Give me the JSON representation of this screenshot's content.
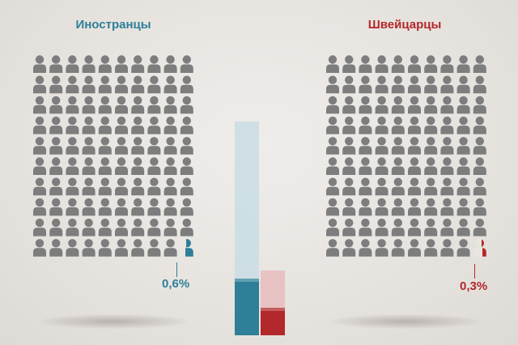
{
  "groups": {
    "foreigners": {
      "label": "Иностранцы",
      "percent_label": "0,6%",
      "color": "#2e7f97"
    },
    "swiss": {
      "label": "Швейцарцы",
      "percent_label": "0,3%",
      "color": "#b3282a"
    }
  },
  "person_grid": {
    "rows": 10,
    "cols": 10,
    "person_color": "#7d7d7d",
    "highlight": "last person partially colored"
  },
  "chart_data": {
    "type": "bar",
    "categories": [
      "Иностранцы",
      "Швейцарцы"
    ],
    "values": [
      0.6,
      0.3
    ],
    "value_labels": [
      "0,6%",
      "0,3%"
    ],
    "colors": [
      "#2e7f97",
      "#b3282a"
    ],
    "grid": false,
    "legend": "none"
  }
}
